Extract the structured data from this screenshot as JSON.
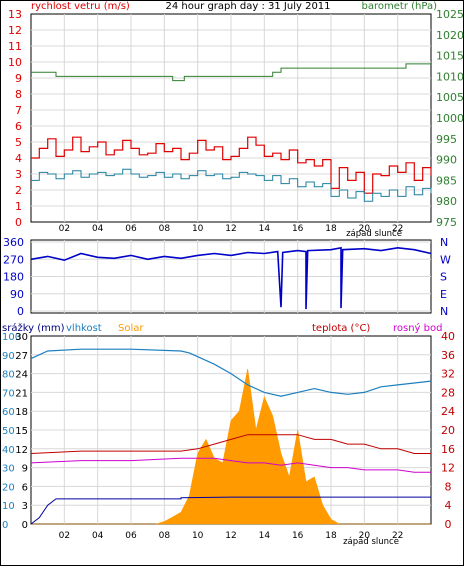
{
  "colors": {
    "wind": "#e00000",
    "gust": "#e00000",
    "wind_avg": "#1f7f9f",
    "pressure": "#2f7f2f",
    "direction": "#0000c8",
    "humidity": "#1c7fbf",
    "solar": "#ff9a00",
    "rain": "#0000a0",
    "temperature": "#c00000",
    "dewpoint": "#d000d0",
    "grid": "#d8d8d8",
    "frame": "#000000"
  },
  "chart_data": [
    {
      "type": "line",
      "title": "24 hour graph day : 31 July 2011",
      "left_axis_label": "rychlost vetru (m/s)",
      "right_axis_label": "barometr (hPa)",
      "sunset_label": "západ slunce",
      "x_ticks": [
        "02",
        "04",
        "06",
        "08",
        "10",
        "12",
        "14",
        "16",
        "18",
        "20",
        "22"
      ],
      "x_range": [
        0,
        24
      ],
      "left_range": [
        0,
        13
      ],
      "left_ticks": [
        "0",
        "1",
        "2",
        "3",
        "4",
        "5",
        "6",
        "7",
        "8",
        "9",
        "10",
        "11",
        "12",
        "13"
      ],
      "right_range": [
        975,
        1025
      ],
      "right_ticks": [
        "975",
        "980",
        "985",
        "990",
        "995",
        "1000",
        "1005",
        "1010",
        "1015",
        "1020",
        "1025"
      ],
      "series": [
        {
          "key": "gust",
          "values": [
            [
              0,
              4
            ],
            [
              0.5,
              4.6
            ],
            [
              1,
              5.2
            ],
            [
              1.5,
              4.1
            ],
            [
              2,
              4.5
            ],
            [
              2.5,
              5.3
            ],
            [
              3,
              4.4
            ],
            [
              3.5,
              4.7
            ],
            [
              4,
              5.0
            ],
            [
              4.5,
              4.2
            ],
            [
              5,
              4.5
            ],
            [
              5.5,
              5.1
            ],
            [
              6,
              4.6
            ],
            [
              6.5,
              4.2
            ],
            [
              7,
              4.3
            ],
            [
              7.5,
              4.9
            ],
            [
              8,
              4.4
            ],
            [
              8.5,
              4.6
            ],
            [
              9,
              3.9
            ],
            [
              9.5,
              4.3
            ],
            [
              10,
              5.1
            ],
            [
              10.5,
              4.5
            ],
            [
              11,
              4.7
            ],
            [
              11.5,
              3.9
            ],
            [
              12,
              4.1
            ],
            [
              12.5,
              4.6
            ],
            [
              13,
              5.3
            ],
            [
              13.5,
              4.8
            ],
            [
              14,
              4.1
            ],
            [
              14.5,
              4.3
            ],
            [
              15,
              3.9
            ],
            [
              15.5,
              4.5
            ],
            [
              16,
              3.7
            ],
            [
              16.5,
              3.9
            ],
            [
              17,
              3.5
            ],
            [
              17.5,
              3.9
            ],
            [
              18,
              2.1
            ],
            [
              18.5,
              3.4
            ],
            [
              19,
              2.6
            ],
            [
              19.5,
              3.1
            ],
            [
              20,
              1.8
            ],
            [
              20.5,
              3.0
            ],
            [
              21,
              2.9
            ],
            [
              21.5,
              3.5
            ],
            [
              22,
              3.1
            ],
            [
              22.5,
              3.7
            ],
            [
              23,
              2.6
            ],
            [
              23.5,
              3.4
            ],
            [
              24,
              2.9
            ]
          ]
        },
        {
          "key": "wind_avg",
          "values": [
            [
              0,
              2.6
            ],
            [
              0.5,
              3.1
            ],
            [
              1,
              3.0
            ],
            [
              1.5,
              2.7
            ],
            [
              2,
              3.0
            ],
            [
              2.5,
              3.2
            ],
            [
              3,
              2.8
            ],
            [
              3.5,
              3.0
            ],
            [
              4,
              3.1
            ],
            [
              4.5,
              2.9
            ],
            [
              5,
              3.0
            ],
            [
              5.5,
              3.3
            ],
            [
              6,
              3.0
            ],
            [
              6.5,
              2.8
            ],
            [
              7,
              2.9
            ],
            [
              7.5,
              3.1
            ],
            [
              8,
              2.8
            ],
            [
              8.5,
              3.0
            ],
            [
              9,
              2.7
            ],
            [
              9.5,
              2.9
            ],
            [
              10,
              3.2
            ],
            [
              10.5,
              2.9
            ],
            [
              11,
              3.0
            ],
            [
              11.5,
              2.7
            ],
            [
              12,
              2.8
            ],
            [
              12.5,
              3.1
            ],
            [
              13,
              3.0
            ],
            [
              13.5,
              2.9
            ],
            [
              14,
              2.6
            ],
            [
              14.5,
              2.9
            ],
            [
              15,
              2.4
            ],
            [
              15.5,
              2.7
            ],
            [
              16,
              2.2
            ],
            [
              16.5,
              2.5
            ],
            [
              17,
              2.2
            ],
            [
              17.5,
              2.4
            ],
            [
              18,
              1.6
            ],
            [
              18.5,
              2.0
            ],
            [
              19,
              1.5
            ],
            [
              19.5,
              1.9
            ],
            [
              20,
              1.3
            ],
            [
              20.5,
              1.8
            ],
            [
              21,
              1.6
            ],
            [
              21.5,
              2.0
            ],
            [
              22,
              1.6
            ],
            [
              22.5,
              2.2
            ],
            [
              23,
              1.7
            ],
            [
              23.5,
              2.1
            ],
            [
              24,
              1.8
            ]
          ]
        },
        {
          "key": "pressure",
          "axis": "right",
          "values": [
            [
              0,
              1011
            ],
            [
              1.5,
              1011
            ],
            [
              1.5,
              1010
            ],
            [
              8.5,
              1010
            ],
            [
              8.5,
              1009
            ],
            [
              9.2,
              1009
            ],
            [
              9.2,
              1010
            ],
            [
              14.5,
              1010
            ],
            [
              14.5,
              1011
            ],
            [
              15,
              1011
            ],
            [
              15,
              1012
            ],
            [
              20.5,
              1012
            ],
            [
              21,
              1012
            ],
            [
              22.5,
              1012
            ],
            [
              22.5,
              1013
            ],
            [
              24,
              1013
            ]
          ]
        }
      ]
    },
    {
      "type": "line",
      "left_ticks": [
        "0",
        "90",
        "180",
        "270",
        "360"
      ],
      "left_range": [
        0,
        360
      ],
      "right_ticks": [
        "N",
        "W",
        "S",
        "E",
        "N"
      ],
      "series": [
        {
          "key": "direction",
          "values": [
            [
              0,
              270
            ],
            [
              1,
              285
            ],
            [
              2,
              265
            ],
            [
              3,
              300
            ],
            [
              4,
              280
            ],
            [
              5,
              275
            ],
            [
              6,
              290
            ],
            [
              7,
              270
            ],
            [
              8,
              285
            ],
            [
              9,
              275
            ],
            [
              10,
              290
            ],
            [
              11,
              300
            ],
            [
              12,
              290
            ],
            [
              13,
              305
            ],
            [
              14,
              300
            ],
            [
              14.8,
              310
            ],
            [
              15,
              20
            ],
            [
              15.1,
              305
            ],
            [
              16,
              315
            ],
            [
              16.5,
              310
            ],
            [
              16.5,
              10
            ],
            [
              16.6,
              315
            ],
            [
              18,
              320
            ],
            [
              18.6,
              330
            ],
            [
              18.6,
              15
            ],
            [
              18.7,
              320
            ],
            [
              20,
              325
            ],
            [
              21,
              315
            ],
            [
              22,
              330
            ],
            [
              23,
              320
            ],
            [
              24,
              300
            ]
          ]
        }
      ]
    },
    {
      "type": "area",
      "legend": [
        "srážky (mm)",
        "vlhkost",
        "Solar",
        "teplota (°C)",
        "rosný bod"
      ],
      "x_ticks": [
        "02",
        "04",
        "06",
        "08",
        "10",
        "12",
        "14",
        "16",
        "18",
        "20",
        "22"
      ],
      "sunset_label": "západ slunce",
      "left_blue_ticks": [
        "0",
        "10",
        "20",
        "30",
        "40",
        "50",
        "60",
        "70",
        "80",
        "90",
        "100"
      ],
      "left_black_ticks": [
        "0",
        "3",
        "6",
        "9",
        "12",
        "15",
        "18",
        "21",
        "24",
        "27",
        "30"
      ],
      "right_ticks": [
        "0",
        "4",
        "8",
        "12",
        "16",
        "20",
        "24",
        "28",
        "32",
        "36",
        "40"
      ],
      "humidity_range": [
        0,
        100
      ],
      "temp_range": [
        0,
        40
      ],
      "rain_range": [
        0,
        30
      ],
      "series": [
        {
          "key": "humidity",
          "values": [
            [
              0,
              88
            ],
            [
              1,
              92
            ],
            [
              3,
              93
            ],
            [
              6,
              93
            ],
            [
              9,
              92
            ],
            [
              9.5,
              91
            ],
            [
              10,
              89
            ],
            [
              11,
              85
            ],
            [
              12,
              80
            ],
            [
              13,
              74
            ],
            [
              14,
              70
            ],
            [
              15,
              68
            ],
            [
              16,
              70
            ],
            [
              17,
              72
            ],
            [
              18,
              70
            ],
            [
              19,
              69
            ],
            [
              20,
              70
            ],
            [
              21,
              73
            ],
            [
              22,
              74
            ],
            [
              23,
              75
            ],
            [
              24,
              76
            ]
          ]
        },
        {
          "key": "temperature",
          "values": [
            [
              0,
              15
            ],
            [
              3,
              15.5
            ],
            [
              6,
              15.5
            ],
            [
              9,
              15.5
            ],
            [
              10,
              16
            ],
            [
              11,
              17
            ],
            [
              12,
              18
            ],
            [
              13,
              19
            ],
            [
              14,
              19
            ],
            [
              15,
              19
            ],
            [
              16,
              19
            ],
            [
              17,
              18
            ],
            [
              18,
              18
            ],
            [
              19,
              17
            ],
            [
              20,
              17
            ],
            [
              21,
              16
            ],
            [
              22,
              16
            ],
            [
              23,
              15
            ],
            [
              24,
              15
            ]
          ]
        },
        {
          "key": "dewpoint",
          "values": [
            [
              0,
              13
            ],
            [
              3,
              13.5
            ],
            [
              6,
              13.5
            ],
            [
              9,
              14
            ],
            [
              10,
              14
            ],
            [
              11,
              14
            ],
            [
              12,
              13.5
            ],
            [
              13,
              13
            ],
            [
              14,
              13
            ],
            [
              15,
              12.5
            ],
            [
              16,
              13
            ],
            [
              17,
              12.5
            ],
            [
              18,
              12
            ],
            [
              19,
              12
            ],
            [
              20,
              11.5
            ],
            [
              21,
              11.5
            ],
            [
              22,
              11.5
            ],
            [
              23,
              11
            ],
            [
              24,
              11
            ]
          ]
        },
        {
          "key": "rain",
          "values": [
            [
              0,
              0
            ],
            [
              0.5,
              1
            ],
            [
              1,
              3
            ],
            [
              1.5,
              4
            ],
            [
              3,
              4
            ],
            [
              6,
              4
            ],
            [
              9,
              4
            ],
            [
              9,
              4.2
            ],
            [
              12,
              4.3
            ],
            [
              24,
              4.3
            ]
          ]
        },
        {
          "key": "solar",
          "values": [
            [
              0,
              0
            ],
            [
              7.5,
              0
            ],
            [
              8,
              5
            ],
            [
              8.5,
              15
            ],
            [
              9,
              25
            ],
            [
              9.5,
              60
            ],
            [
              10,
              150
            ],
            [
              10.5,
              180
            ],
            [
              11,
              140
            ],
            [
              11.5,
              130
            ],
            [
              12,
              220
            ],
            [
              12.5,
              240
            ],
            [
              13,
              330
            ],
            [
              13.5,
              200
            ],
            [
              14,
              270
            ],
            [
              14.5,
              230
            ],
            [
              15,
              150
            ],
            [
              15.5,
              100
            ],
            [
              16,
              200
            ],
            [
              16.5,
              90
            ],
            [
              17,
              100
            ],
            [
              17.5,
              40
            ],
            [
              18,
              10
            ],
            [
              18.5,
              0
            ],
            [
              24,
              0
            ]
          ]
        }
      ]
    }
  ]
}
